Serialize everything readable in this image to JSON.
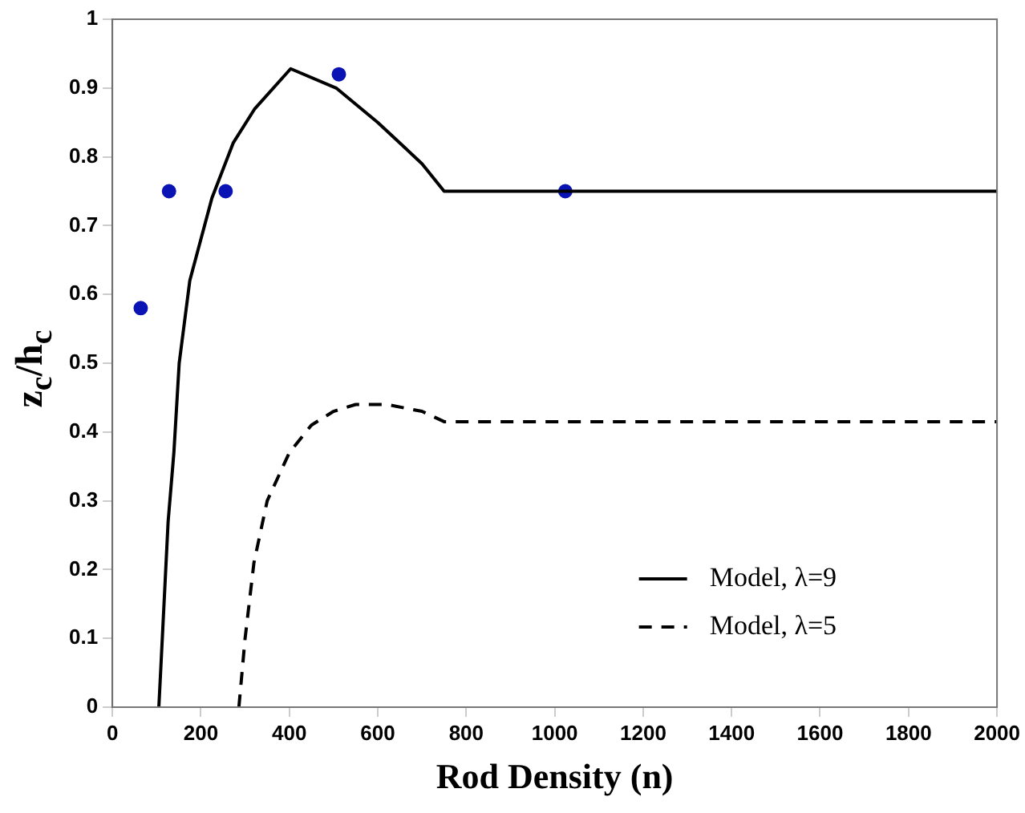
{
  "chart_data": {
    "type": "line",
    "xlabel": "Rod Density (n)",
    "ylabel": "z$_{c}$/h$_{c}$",
    "xlim": [
      0,
      2000
    ],
    "xticks": [
      0,
      200,
      400,
      600,
      800,
      1000,
      1200,
      1400,
      1600,
      1800,
      2000
    ],
    "ylim": [
      0,
      1
    ],
    "yticks": [
      0,
      0.1,
      0.2,
      0.3,
      0.4,
      0.5,
      0.6,
      0.7,
      0.8,
      0.9,
      1
    ],
    "grid": false,
    "legend": "bottom right",
    "series": [
      {
        "name": "Model, λ=9",
        "type": "line",
        "color": "#000000",
        "line_style": "solid",
        "marker": "none",
        "x": [
          105,
          114,
          126,
          139,
          151,
          175,
          200,
          225,
          273,
          322,
          403,
          506,
          600,
          700,
          750,
          2000
        ],
        "values": [
          0,
          0.115,
          0.27,
          0.37,
          0.5,
          0.62,
          0.68,
          0.74,
          0.82,
          0.87,
          0.928,
          0.9,
          0.85,
          0.79,
          0.75,
          0.75
        ]
      },
      {
        "name": "Model, λ=5",
        "type": "line",
        "color": "#000000",
        "line_style": "dashed",
        "marker": "none",
        "x": [
          286,
          300,
          320,
          350,
          400,
          450,
          500,
          550,
          620,
          700,
          750,
          2000
        ],
        "values": [
          0,
          0.1,
          0.21,
          0.3,
          0.37,
          0.41,
          0.43,
          0.44,
          0.44,
          0.43,
          0.415,
          0.415
        ]
      },
      {
        "type": "scatter",
        "color": "#0a14b4",
        "marker": "circle",
        "x": [
          64,
          128,
          256,
          512,
          1024
        ],
        "values": [
          0.58,
          0.75,
          0.75,
          0.92,
          0.75
        ]
      }
    ]
  }
}
